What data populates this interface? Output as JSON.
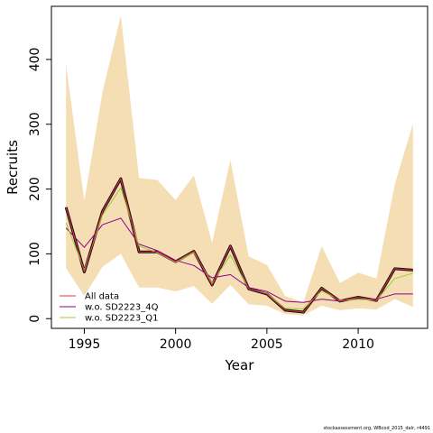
{
  "chart_data": {
    "type": "line",
    "title": "",
    "xlabel": "Year",
    "ylabel": "Recruits",
    "xlim": [
      1993.2,
      2013.8
    ],
    "ylim": [
      -15,
      482
    ],
    "x_ticks": [
      1995,
      2000,
      2005,
      2010
    ],
    "y_ticks": [
      0,
      100,
      200,
      300,
      400
    ],
    "grid": false,
    "legend": {
      "position": "bottom-left",
      "entries": [
        "All data",
        "w.o. SD2223_4Q",
        "w.o. SD2223_Q1"
      ]
    },
    "x": [
      1994,
      1995,
      1996,
      1997,
      1998,
      1999,
      2000,
      2001,
      2002,
      2003,
      2004,
      2005,
      2006,
      2007,
      2008,
      2009,
      2010,
      2011,
      2012,
      2013
    ],
    "band": {
      "color": "#F5DEB3",
      "upper": [
        392,
        182,
        350,
        468,
        217,
        214,
        183,
        221,
        117,
        245,
        96,
        83,
        35,
        25,
        112,
        55,
        71,
        62,
        207,
        301
      ],
      "lower": [
        78,
        35,
        80,
        100,
        48,
        48,
        42,
        50,
        23,
        52,
        22,
        20,
        7,
        5,
        20,
        13,
        16,
        14,
        30,
        18
      ]
    },
    "series": [
      {
        "name": "All data",
        "color": "#111111",
        "values": [
          172,
          72,
          166,
          216,
          103,
          103,
          88,
          104,
          52,
          112,
          46,
          38,
          13,
          10,
          47,
          27,
          33,
          28,
          77,
          75
        ]
      },
      {
        "name": "w.o. SD2223_4Q",
        "color": "#8B008B",
        "values": [
          140,
          110,
          145,
          155,
          115,
          105,
          90,
          82,
          63,
          68,
          48,
          42,
          27,
          25,
          30,
          27,
          30,
          30,
          38,
          38
        ]
      },
      {
        "name": "w.o. SD2223_Q1",
        "color": "#9ACD32",
        "values": [
          148,
          75,
          160,
          202,
          112,
          102,
          87,
          102,
          55,
          98,
          46,
          39,
          16,
          15,
          43,
          28,
          30,
          28,
          62,
          70
        ]
      },
      {
        "name": "All data (overlay)",
        "color": "#E8304A",
        "values": [
          172,
          72,
          166,
          216,
          103,
          103,
          88,
          104,
          52,
          112,
          46,
          38,
          13,
          10,
          47,
          27,
          33,
          28,
          77,
          75
        ]
      }
    ]
  },
  "footer": "stockassessment.org, WBcod_2015_dalr, r4491"
}
